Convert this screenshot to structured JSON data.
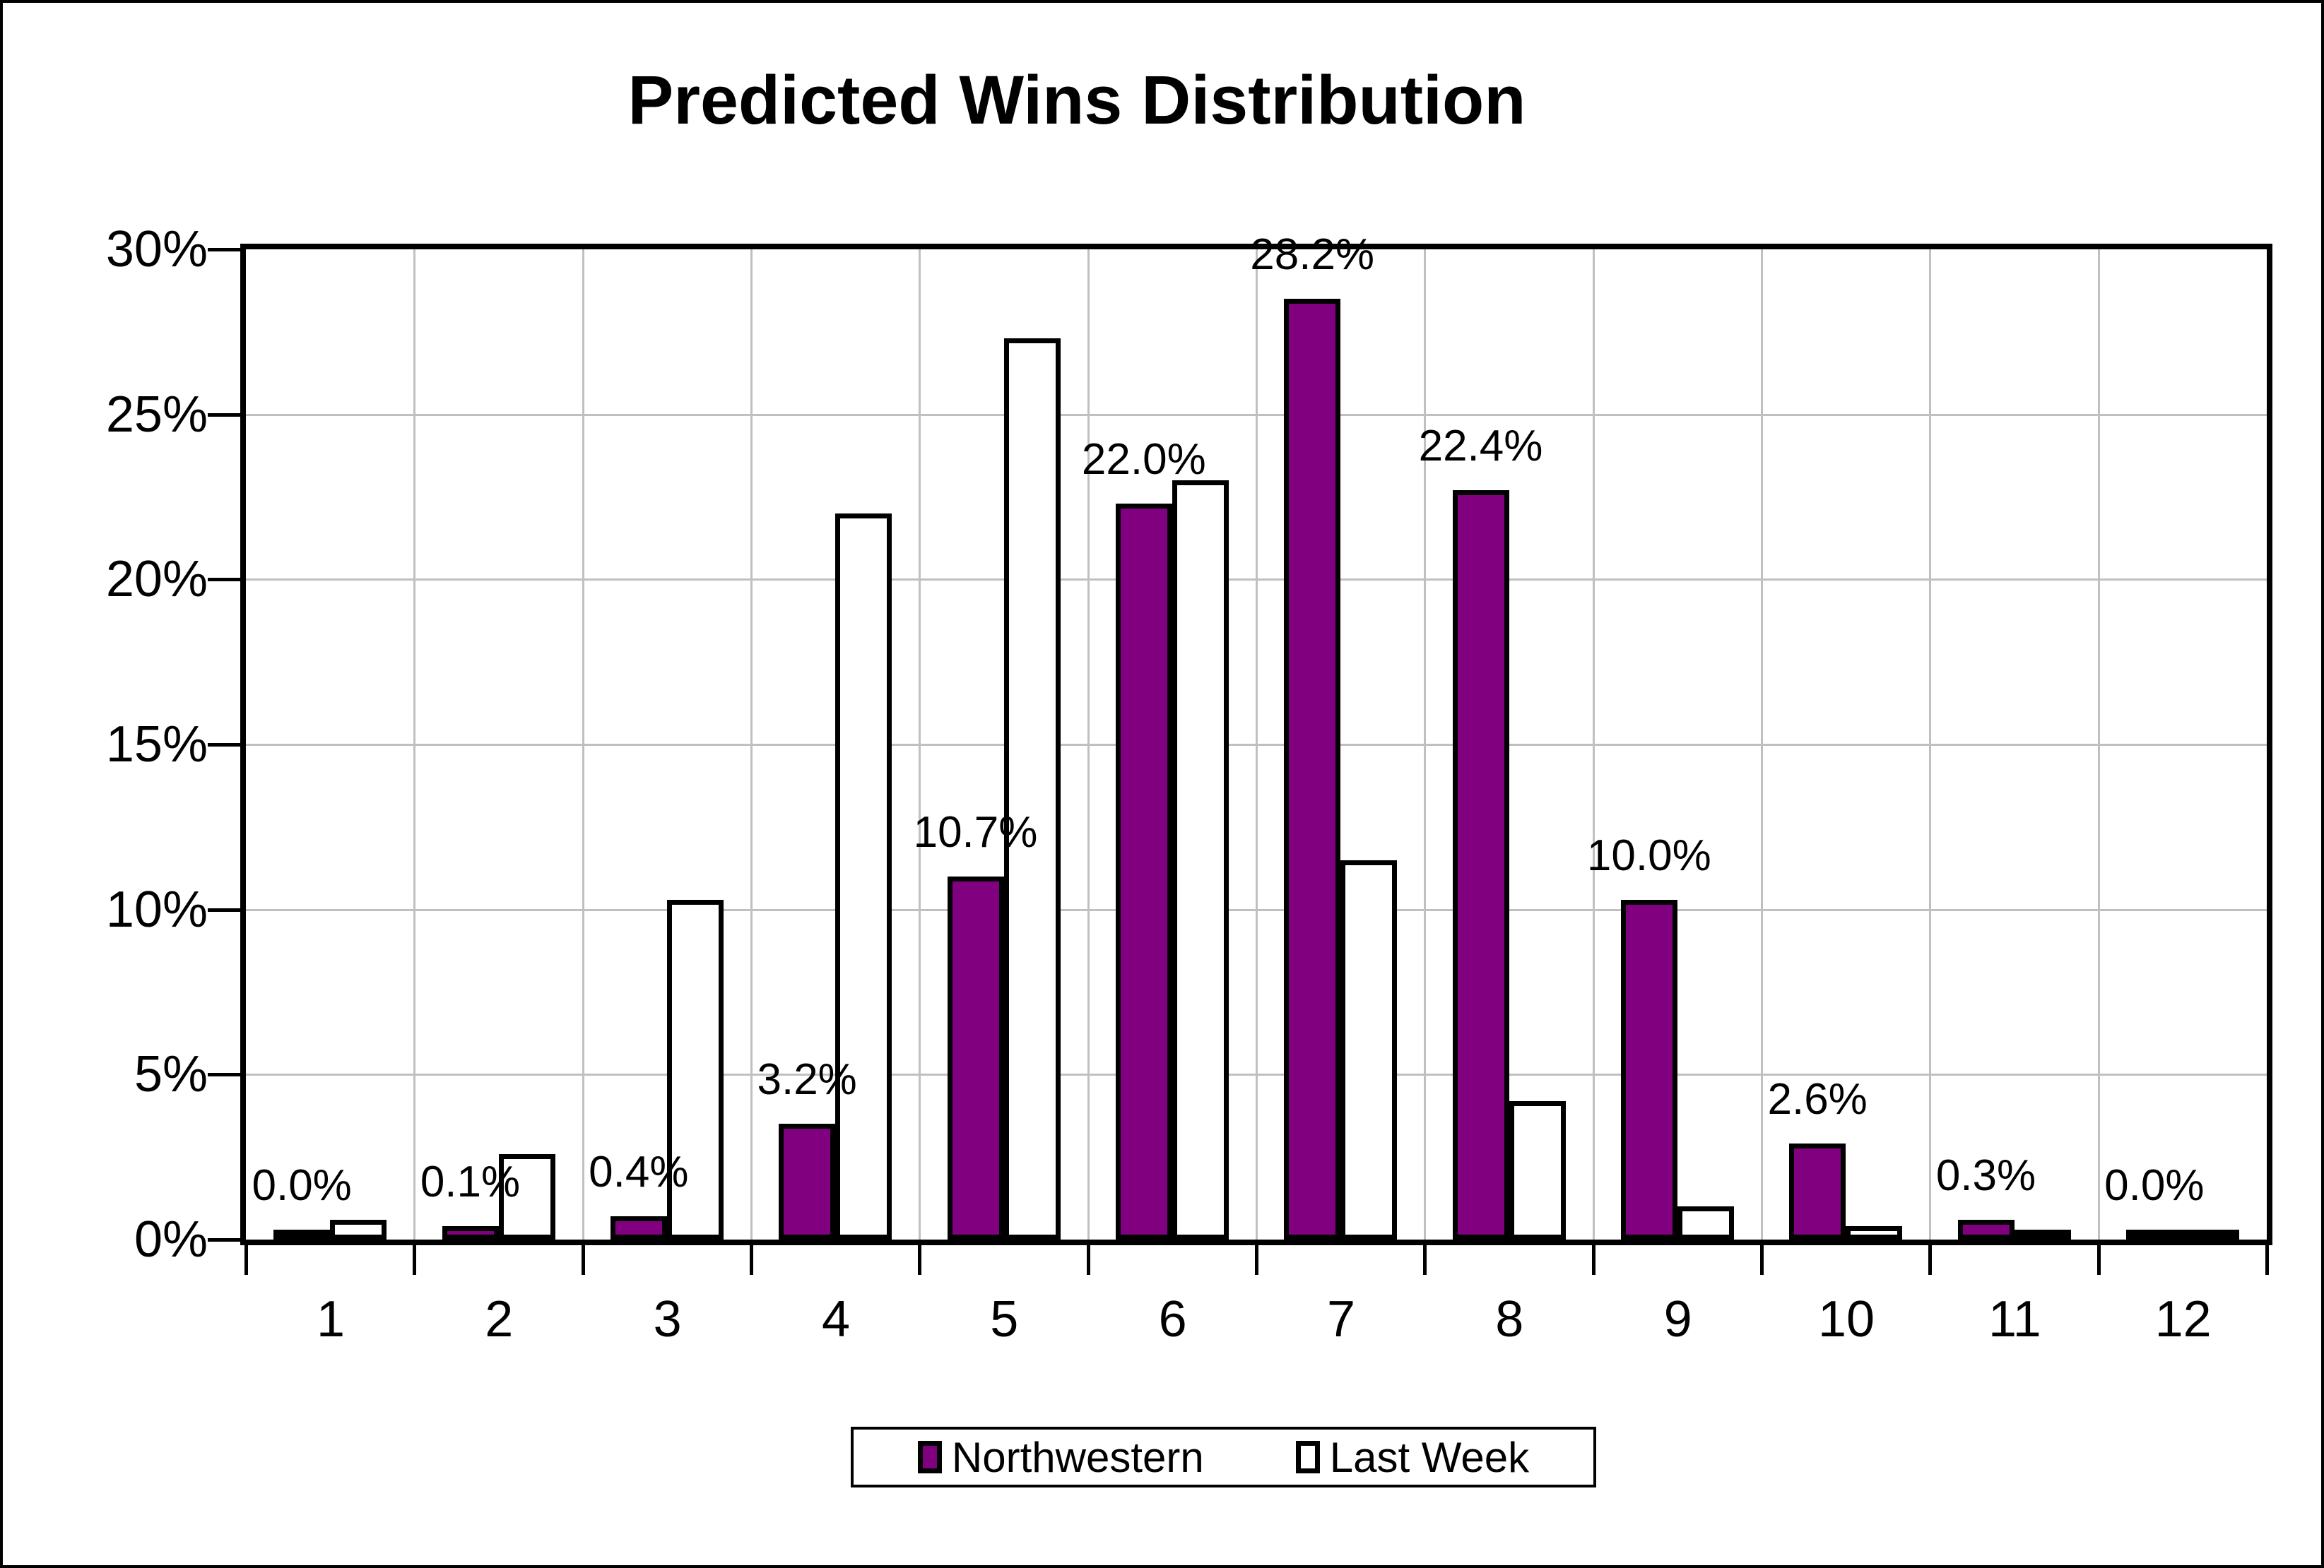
{
  "chart_data": {
    "type": "bar",
    "title": "Predicted Wins Distribution",
    "categories": [
      "1",
      "2",
      "3",
      "4",
      "5",
      "6",
      "7",
      "8",
      "9",
      "10",
      "11",
      "12"
    ],
    "series": [
      {
        "name": "Northwestern",
        "color": "#800080",
        "values": [
          0.0,
          0.1,
          0.4,
          3.2,
          10.7,
          22.0,
          28.2,
          22.4,
          10.0,
          2.6,
          0.3,
          0.0
        ],
        "data_labels": [
          "0.0%",
          "0.1%",
          "0.4%",
          "3.2%",
          "10.7%",
          "22.0%",
          "28.2%",
          "22.4%",
          "10.0%",
          "2.6%",
          "0.3%",
          "0.0%"
        ]
      },
      {
        "name": "Last Week",
        "color": "#FFFFFF",
        "values": [
          0.3,
          2.3,
          10.0,
          21.7,
          27.0,
          22.7,
          11.2,
          3.9,
          0.7,
          0.1,
          0.0,
          0.0
        ]
      }
    ],
    "xlabel": "",
    "ylabel": "",
    "ylim": [
      0,
      30
    ],
    "ytick_step": 5,
    "ytick_labels": [
      "0%",
      "5%",
      "10%",
      "15%",
      "20%",
      "25%",
      "30%"
    ],
    "grid": true,
    "gridline_color": "#C0C0C0",
    "axis_color": "#000000",
    "legend_position": "bottom"
  }
}
